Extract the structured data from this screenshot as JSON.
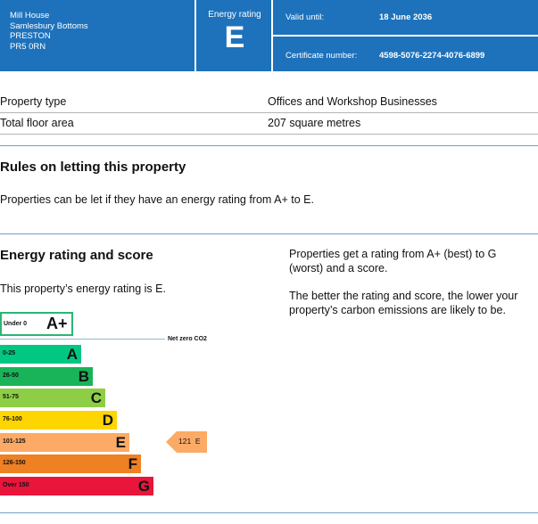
{
  "header": {
    "address": [
      "Mill House",
      "Samlesbury Bottoms",
      "PRESTON",
      "PR5 0RN"
    ],
    "energy_rating_label": "Energy rating",
    "energy_rating_letter": "E",
    "valid_until_label": "Valid until:",
    "valid_until_value": "18 June 2036",
    "certificate_label": "Certificate number:",
    "certificate_value": "4598-5076-2274-4076-6899"
  },
  "property": {
    "type_label": "Property type",
    "type_value": "Offices and Workshop Businesses",
    "area_label": "Total floor area",
    "area_value": "207 square metres"
  },
  "letting": {
    "heading": "Rules on letting this property",
    "text": "Properties can be let if they have an energy rating from A+ to E."
  },
  "rating": {
    "heading": "Energy rating and score",
    "this_property": "This property’s energy rating is E.",
    "info_1": "Properties get a rating from A+ (best) to G (worst) and a score.",
    "info_2": "The better the rating and score, the lower your property’s carbon emissions are likely to be.",
    "net_zero_label": "Net zero CO2",
    "under_zero": {
      "range": "Under 0",
      "letter": "A+"
    },
    "bands": [
      {
        "range": "0-25",
        "letter": "A",
        "color": "#00c781"
      },
      {
        "range": "26-50",
        "letter": "B",
        "color": "#19b459"
      },
      {
        "range": "51-75",
        "letter": "C",
        "color": "#8dce46"
      },
      {
        "range": "76-100",
        "letter": "D",
        "color": "#ffd500"
      },
      {
        "range": "101-125",
        "letter": "E",
        "color": "#fcaa65"
      },
      {
        "range": "126-150",
        "letter": "F",
        "color": "#ef8023"
      },
      {
        "range": "Over 150",
        "letter": "G",
        "color": "#e9153b"
      }
    ],
    "current": {
      "score": "121",
      "letter": "E",
      "color": "#fcaa65"
    }
  }
}
